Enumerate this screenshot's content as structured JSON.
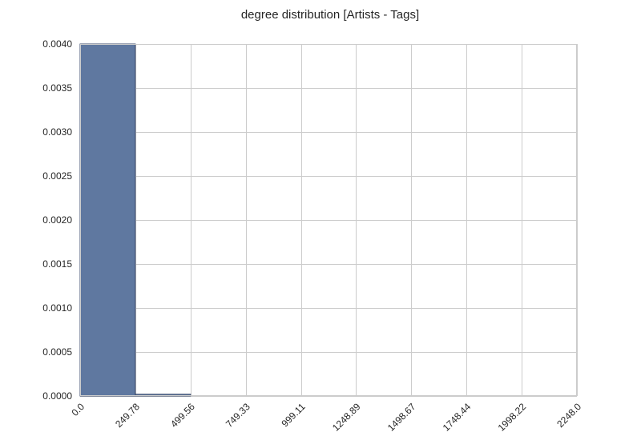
{
  "chart_data": {
    "type": "bar",
    "title": "degree distribution [Artists - Tags]",
    "xlabel": "",
    "ylabel": "",
    "xlim": [
      0.0,
      2248.0
    ],
    "ylim": [
      0.0,
      0.004
    ],
    "grid": true,
    "x_ticks": [
      "0.0",
      "249.78",
      "499.56",
      "749.33",
      "999.11",
      "1248.89",
      "1498.67",
      "1748.44",
      "1998.22",
      "2248.0"
    ],
    "y_ticks": [
      "0.0000",
      "0.0005",
      "0.0010",
      "0.0015",
      "0.0020",
      "0.0025",
      "0.0030",
      "0.0035",
      "0.0040"
    ],
    "bin_edges": [
      0.0,
      249.78,
      499.56,
      749.33,
      999.11,
      1248.89,
      1498.67,
      1748.44,
      1998.22,
      2248.0
    ],
    "values": [
      0.004,
      2e-05,
      0.0,
      0.0,
      0.0,
      0.0,
      0.0,
      0.0,
      0.0
    ],
    "colors": {
      "bar": "#5f78a0",
      "bar_edge": "#3b4a6b",
      "grid": "#cccccc"
    }
  }
}
